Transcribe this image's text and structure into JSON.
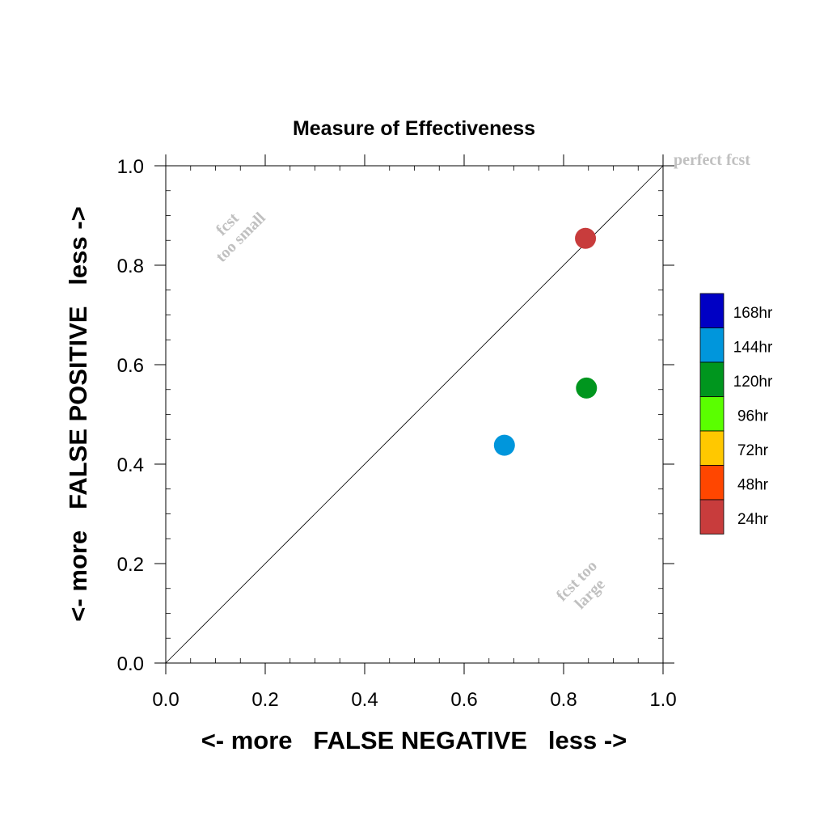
{
  "chart_data": {
    "type": "scatter",
    "title": "Measure of Effectiveness",
    "xlabel": "<- more   FALSE NEGATIVE   less ->",
    "ylabel": "<- more   FALSE POSITIVE   less ->",
    "xlim": [
      0.0,
      1.0
    ],
    "ylim": [
      0.0,
      1.0
    ],
    "xticks": [
      "0.0",
      "0.2",
      "0.4",
      "0.6",
      "0.8",
      "1.0"
    ],
    "yticks": [
      "0.0",
      "0.2",
      "0.4",
      "0.6",
      "0.8",
      "1.0"
    ],
    "grid": false,
    "reference_line": "diagonal y = x",
    "annotations": {
      "perfect": "perfect fcst",
      "small_line1": "fcst",
      "small_line2": "too small",
      "large_line1": "fcst too",
      "large_line2": "large"
    },
    "legend": {
      "placement": "right",
      "entries": [
        {
          "label": "168hr",
          "color": "#0000c4"
        },
        {
          "label": "144hr",
          "color": "#0096dc"
        },
        {
          "label": "120hr",
          "color": "#00961e"
        },
        {
          "label": "96hr",
          "color": "#5aff00"
        },
        {
          "label": "72hr",
          "color": "#ffc800"
        },
        {
          "label": "48hr",
          "color": "#ff4600"
        },
        {
          "label": "24hr",
          "color": "#c83c3c"
        }
      ]
    },
    "points": [
      {
        "lead": "24hr",
        "x": 0.844,
        "y": 0.854,
        "color": "#c83c3c"
      },
      {
        "lead": "120hr",
        "x": 0.846,
        "y": 0.553,
        "color": "#00961e"
      },
      {
        "lead": "144hr",
        "x": 0.681,
        "y": 0.438,
        "color": "#0096dc"
      }
    ]
  }
}
